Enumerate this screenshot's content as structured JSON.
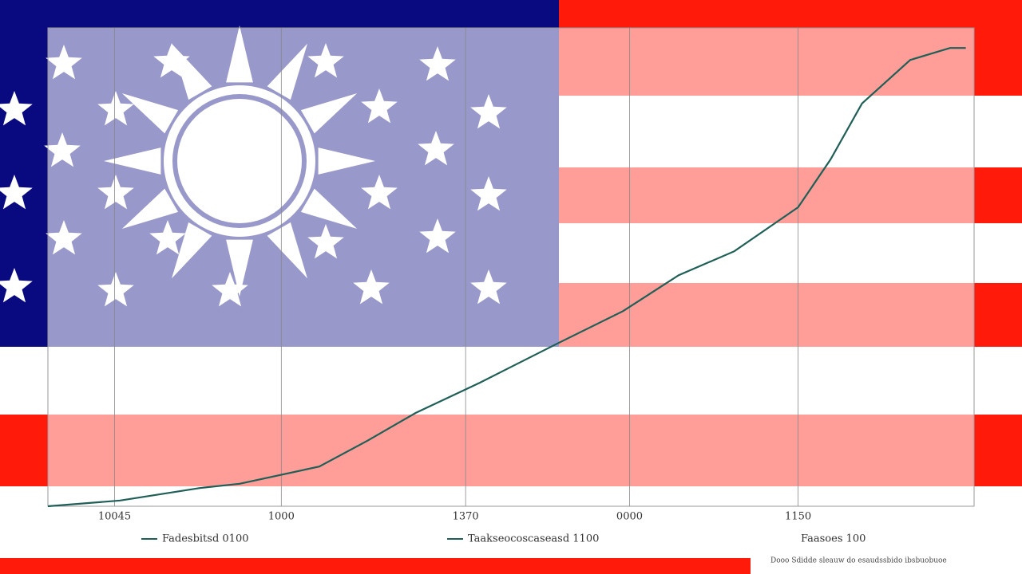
{
  "chart_data": {
    "type": "line",
    "x": [
      0,
      7.8,
      16.4,
      20.7,
      29.3,
      34.5,
      39.7,
      46.6,
      55.2,
      62.1,
      68.1,
      74.1,
      81.0,
      84.5,
      87.9,
      93.1,
      97.4,
      99.1
    ],
    "series": [
      {
        "color": "#1f5f57",
        "values": [
          0,
          1.2,
          3.8,
          4.7,
          8.3,
          13.7,
          19.5,
          25.8,
          34.2,
          40.8,
          48.3,
          53.3,
          62.5,
          72.5,
          84.2,
          93.3,
          95.8,
          95.8
        ]
      }
    ],
    "xlim": [
      0,
      100
    ],
    "ylim": [
      0,
      100
    ],
    "xticks": [
      {
        "value": 7.2,
        "label": "10045"
      },
      {
        "value": 25.2,
        "label": "1000"
      },
      {
        "value": 45.1,
        "label": "1370"
      },
      {
        "value": 62.8,
        "label": "0000"
      },
      {
        "value": 81.0,
        "label": "1150"
      }
    ],
    "legend": [
      "Fadesbitsd 0100",
      "Taakseocoscaseasd 1100",
      "Faasoes 100"
    ],
    "footnote": "Dooo Sdidde sleauw do esaudssbido ibsbuobuoe",
    "grid": true
  }
}
